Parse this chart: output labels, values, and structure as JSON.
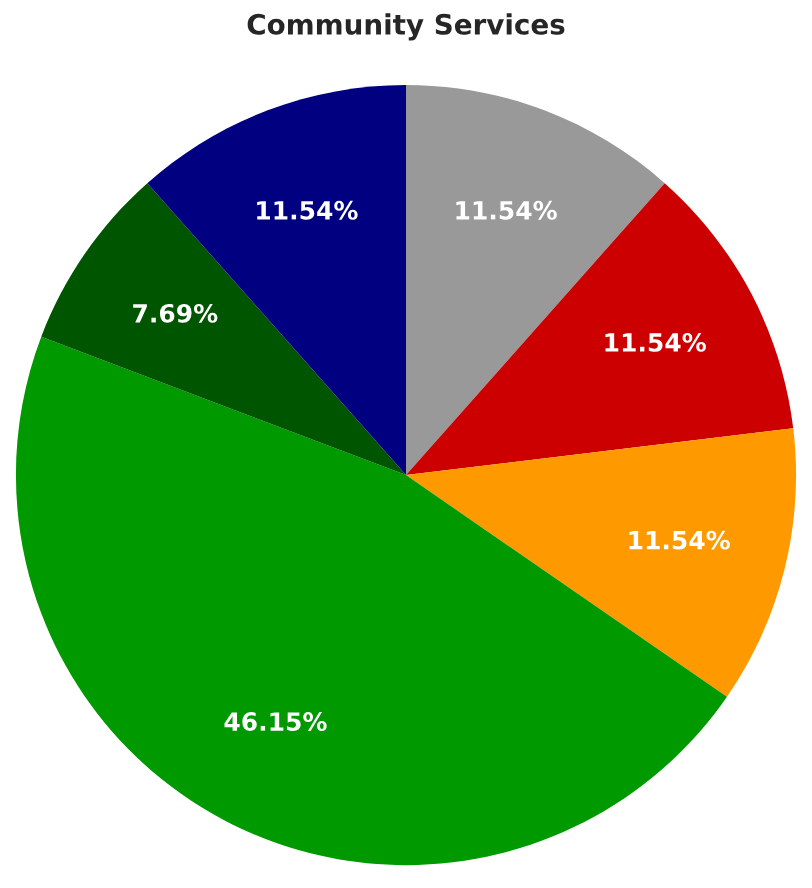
{
  "chart_data": {
    "type": "pie",
    "title": "Community Services",
    "categories": [
      null,
      null,
      null,
      null,
      null,
      null
    ],
    "values": [
      11.54,
      11.54,
      11.54,
      46.15,
      7.69,
      11.54
    ],
    "colors": [
      "#999999",
      "#cc0000",
      "#ff9900",
      "#009900",
      "#005500",
      "#000080"
    ],
    "value_labels": [
      "11.54%",
      "11.54%",
      "11.54%",
      "46.15%",
      "7.69%",
      "11.54%"
    ],
    "legend": false
  }
}
